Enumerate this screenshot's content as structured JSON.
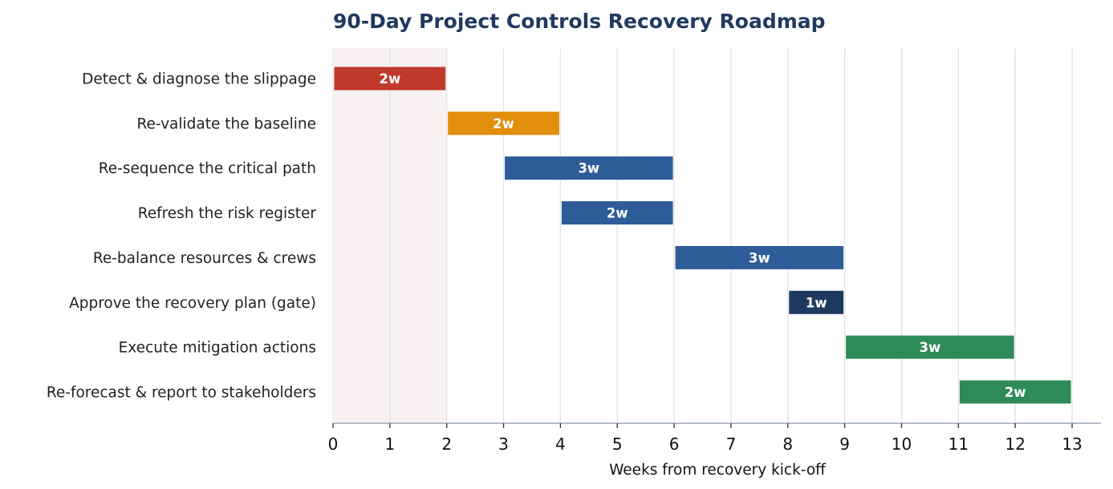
{
  "chart_data": {
    "type": "bar",
    "orientation": "horizontal-gantt",
    "title": "90-Day Project Controls Recovery Roadmap",
    "xlabel": "Weeks from recovery kick-off",
    "ylabel": "",
    "xlim": [
      0,
      13.5
    ],
    "xticks": [
      0,
      1,
      2,
      3,
      4,
      5,
      6,
      7,
      8,
      9,
      10,
      11,
      12,
      13
    ],
    "grid": "vertical",
    "highlight_band": {
      "start": 0,
      "end": 2,
      "color": "#f9f1f1"
    },
    "tasks": [
      {
        "name": "Detect & diagnose the slippage",
        "start": 0,
        "end": 2,
        "label": "2w",
        "color": "#c0392b"
      },
      {
        "name": "Re-validate the baseline",
        "start": 2,
        "end": 4,
        "label": "2w",
        "color": "#e08e0b"
      },
      {
        "name": "Re-sequence the critical path",
        "start": 3,
        "end": 6,
        "label": "3w",
        "color": "#2e5c99"
      },
      {
        "name": "Refresh the risk register",
        "start": 4,
        "end": 6,
        "label": "2w",
        "color": "#2e5c99"
      },
      {
        "name": "Re-balance resources & crews",
        "start": 6,
        "end": 9,
        "label": "3w",
        "color": "#2e5c99"
      },
      {
        "name": "Approve the recovery plan (gate)",
        "start": 8,
        "end": 9,
        "label": "1w",
        "color": "#1f3a5f"
      },
      {
        "name": "Execute mitigation actions",
        "start": 9,
        "end": 12,
        "label": "3w",
        "color": "#2e8b57"
      },
      {
        "name": "Re-forecast & report to stakeholders",
        "start": 11,
        "end": 13,
        "label": "2w",
        "color": "#2e8b57"
      }
    ]
  }
}
